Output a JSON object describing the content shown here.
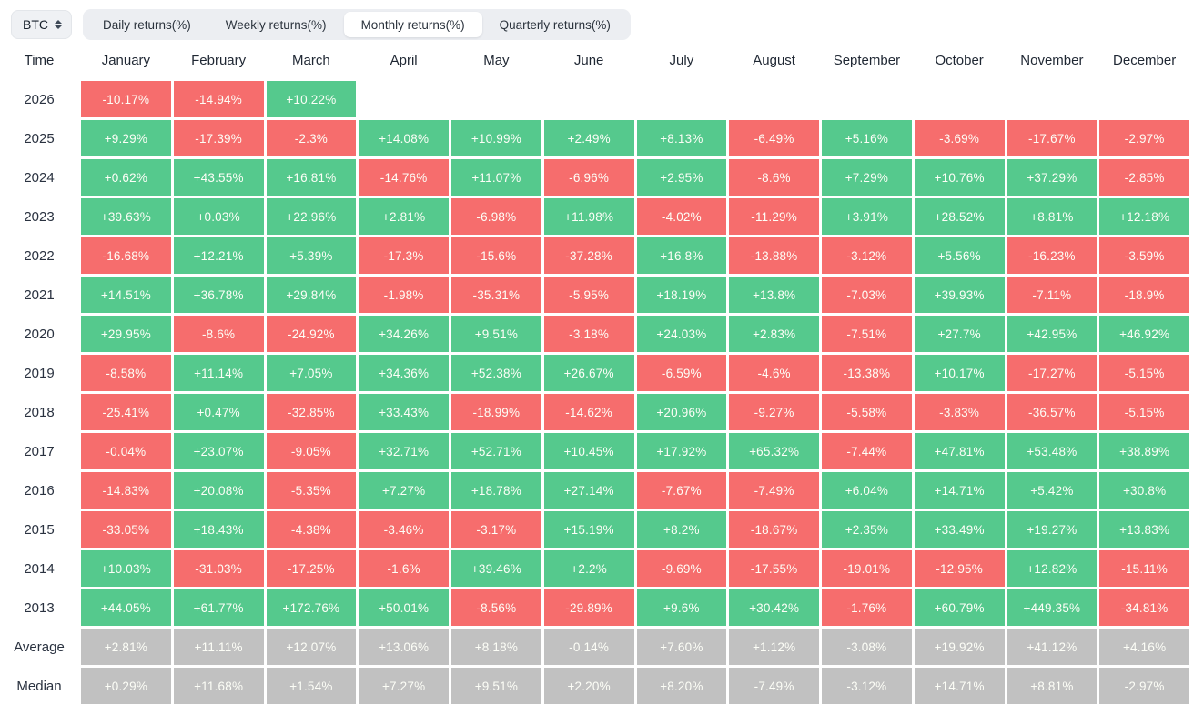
{
  "controls": {
    "symbol": "BTC",
    "tabs": [
      {
        "label": "Daily returns(%)",
        "active": false
      },
      {
        "label": "Weekly returns(%)",
        "active": false
      },
      {
        "label": "Monthly returns(%)",
        "active": true
      },
      {
        "label": "Quarterly returns(%)",
        "active": false
      }
    ]
  },
  "chart_data": {
    "type": "heatmap",
    "title": "BTC Monthly returns(%)",
    "columns": [
      "Time",
      "January",
      "February",
      "March",
      "April",
      "May",
      "June",
      "July",
      "August",
      "September",
      "October",
      "November",
      "December"
    ],
    "rows": [
      {
        "label": "2026",
        "kind": "year",
        "values": [
          "-10.17%",
          "-14.94%",
          "+10.22%",
          "",
          "",
          "",
          "",
          "",
          "",
          "",
          "",
          ""
        ]
      },
      {
        "label": "2025",
        "kind": "year",
        "values": [
          "+9.29%",
          "-17.39%",
          "-2.3%",
          "+14.08%",
          "+10.99%",
          "+2.49%",
          "+8.13%",
          "-6.49%",
          "+5.16%",
          "-3.69%",
          "-17.67%",
          "-2.97%"
        ]
      },
      {
        "label": "2024",
        "kind": "year",
        "values": [
          "+0.62%",
          "+43.55%",
          "+16.81%",
          "-14.76%",
          "+11.07%",
          "-6.96%",
          "+2.95%",
          "-8.6%",
          "+7.29%",
          "+10.76%",
          "+37.29%",
          "-2.85%"
        ]
      },
      {
        "label": "2023",
        "kind": "year",
        "values": [
          "+39.63%",
          "+0.03%",
          "+22.96%",
          "+2.81%",
          "-6.98%",
          "+11.98%",
          "-4.02%",
          "-11.29%",
          "+3.91%",
          "+28.52%",
          "+8.81%",
          "+12.18%"
        ]
      },
      {
        "label": "2022",
        "kind": "year",
        "values": [
          "-16.68%",
          "+12.21%",
          "+5.39%",
          "-17.3%",
          "-15.6%",
          "-37.28%",
          "+16.8%",
          "-13.88%",
          "-3.12%",
          "+5.56%",
          "-16.23%",
          "-3.59%"
        ]
      },
      {
        "label": "2021",
        "kind": "year",
        "values": [
          "+14.51%",
          "+36.78%",
          "+29.84%",
          "-1.98%",
          "-35.31%",
          "-5.95%",
          "+18.19%",
          "+13.8%",
          "-7.03%",
          "+39.93%",
          "-7.11%",
          "-18.9%"
        ]
      },
      {
        "label": "2020",
        "kind": "year",
        "values": [
          "+29.95%",
          "-8.6%",
          "-24.92%",
          "+34.26%",
          "+9.51%",
          "-3.18%",
          "+24.03%",
          "+2.83%",
          "-7.51%",
          "+27.7%",
          "+42.95%",
          "+46.92%"
        ]
      },
      {
        "label": "2019",
        "kind": "year",
        "values": [
          "-8.58%",
          "+11.14%",
          "+7.05%",
          "+34.36%",
          "+52.38%",
          "+26.67%",
          "-6.59%",
          "-4.6%",
          "-13.38%",
          "+10.17%",
          "-17.27%",
          "-5.15%"
        ]
      },
      {
        "label": "2018",
        "kind": "year",
        "values": [
          "-25.41%",
          "+0.47%",
          "-32.85%",
          "+33.43%",
          "-18.99%",
          "-14.62%",
          "+20.96%",
          "-9.27%",
          "-5.58%",
          "-3.83%",
          "-36.57%",
          "-5.15%"
        ]
      },
      {
        "label": "2017",
        "kind": "year",
        "values": [
          "-0.04%",
          "+23.07%",
          "-9.05%",
          "+32.71%",
          "+52.71%",
          "+10.45%",
          "+17.92%",
          "+65.32%",
          "-7.44%",
          "+47.81%",
          "+53.48%",
          "+38.89%"
        ]
      },
      {
        "label": "2016",
        "kind": "year",
        "values": [
          "-14.83%",
          "+20.08%",
          "-5.35%",
          "+7.27%",
          "+18.78%",
          "+27.14%",
          "-7.67%",
          "-7.49%",
          "+6.04%",
          "+14.71%",
          "+5.42%",
          "+30.8%"
        ]
      },
      {
        "label": "2015",
        "kind": "year",
        "values": [
          "-33.05%",
          "+18.43%",
          "-4.38%",
          "-3.46%",
          "-3.17%",
          "+15.19%",
          "+8.2%",
          "-18.67%",
          "+2.35%",
          "+33.49%",
          "+19.27%",
          "+13.83%"
        ]
      },
      {
        "label": "2014",
        "kind": "year",
        "values": [
          "+10.03%",
          "-31.03%",
          "-17.25%",
          "-1.6%",
          "+39.46%",
          "+2.2%",
          "-9.69%",
          "-17.55%",
          "-19.01%",
          "-12.95%",
          "+12.82%",
          "-15.11%"
        ]
      },
      {
        "label": "2013",
        "kind": "year",
        "values": [
          "+44.05%",
          "+61.77%",
          "+172.76%",
          "+50.01%",
          "-8.56%",
          "-29.89%",
          "+9.6%",
          "+30.42%",
          "-1.76%",
          "+60.79%",
          "+449.35%",
          "-34.81%"
        ]
      },
      {
        "label": "Average",
        "kind": "summary",
        "values": [
          "+2.81%",
          "+11.11%",
          "+12.07%",
          "+13.06%",
          "+8.18%",
          "-0.14%",
          "+7.60%",
          "+1.12%",
          "-3.08%",
          "+19.92%",
          "+41.12%",
          "+4.16%"
        ]
      },
      {
        "label": "Median",
        "kind": "summary",
        "values": [
          "+0.29%",
          "+11.68%",
          "+1.54%",
          "+7.27%",
          "+9.51%",
          "+2.20%",
          "+8.20%",
          "-7.49%",
          "-3.12%",
          "+14.71%",
          "+8.81%",
          "-2.97%"
        ]
      }
    ],
    "colors": {
      "positive": "#55c98d",
      "negative": "#f66d6d",
      "summary": "#c1c1c1"
    }
  }
}
